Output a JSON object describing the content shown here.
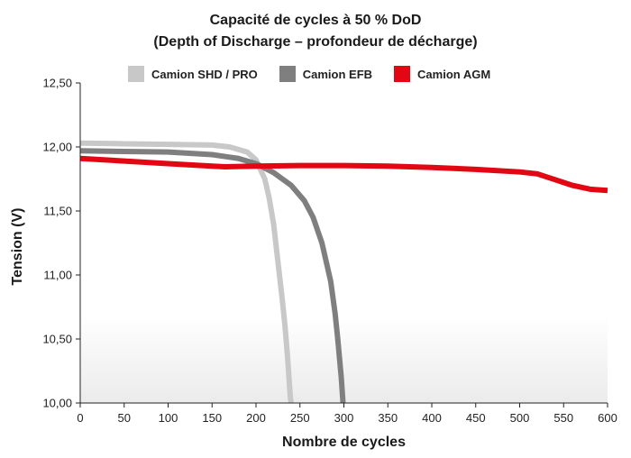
{
  "chart_data": {
    "type": "line",
    "title_line1": "Capacité de cycles à 50 % DoD",
    "title_line2": "(Depth of Discharge – profondeur de décharge)",
    "xlabel": "Nombre de cycles",
    "ylabel": "Tension (V)",
    "xlim": [
      0,
      600
    ],
    "ylim": [
      10.0,
      12.5
    ],
    "x_ticks": [
      0,
      50,
      100,
      150,
      200,
      250,
      300,
      350,
      400,
      450,
      500,
      550,
      600
    ],
    "x_tick_labels": [
      "0",
      "50",
      "100",
      "150",
      "200",
      "250",
      "300",
      "350",
      "400",
      "450",
      "500",
      "550",
      "600"
    ],
    "y_ticks": [
      10.0,
      10.5,
      11.0,
      11.5,
      12.0,
      12.5
    ],
    "y_tick_labels": [
      "10,00",
      "10,50",
      "11,00",
      "11,50",
      "12,00",
      "12,50"
    ],
    "grid": false,
    "legend_position": "top",
    "series": [
      {
        "name": "Camion SHD / PRO",
        "color": "#c8c8c8",
        "x": [
          0,
          50,
          100,
          150,
          170,
          190,
          200,
          210,
          215,
          220,
          225,
          230,
          233,
          236,
          238,
          239,
          240
        ],
        "y": [
          12.03,
          12.025,
          12.02,
          12.015,
          12.0,
          11.96,
          11.9,
          11.75,
          11.6,
          11.4,
          11.1,
          10.8,
          10.6,
          10.35,
          10.15,
          10.05,
          10.0
        ]
      },
      {
        "name": "Camion EFB",
        "color": "#7f7f7f",
        "x": [
          0,
          50,
          100,
          150,
          180,
          200,
          220,
          240,
          255,
          265,
          275,
          285,
          290,
          293,
          295,
          297,
          298,
          299
        ],
        "y": [
          11.97,
          11.965,
          11.96,
          11.94,
          11.91,
          11.87,
          11.8,
          11.7,
          11.58,
          11.45,
          11.25,
          10.95,
          10.7,
          10.5,
          10.35,
          10.2,
          10.1,
          10.0
        ]
      },
      {
        "name": "Camion AGM",
        "color": "#e30613",
        "x": [
          0,
          50,
          100,
          150,
          165,
          200,
          250,
          300,
          350,
          400,
          450,
          500,
          520,
          540,
          560,
          580,
          600
        ],
        "y": [
          11.91,
          11.89,
          11.87,
          11.85,
          11.845,
          11.85,
          11.855,
          11.855,
          11.85,
          11.84,
          11.825,
          11.805,
          11.79,
          11.745,
          11.7,
          11.67,
          11.66
        ]
      }
    ]
  }
}
